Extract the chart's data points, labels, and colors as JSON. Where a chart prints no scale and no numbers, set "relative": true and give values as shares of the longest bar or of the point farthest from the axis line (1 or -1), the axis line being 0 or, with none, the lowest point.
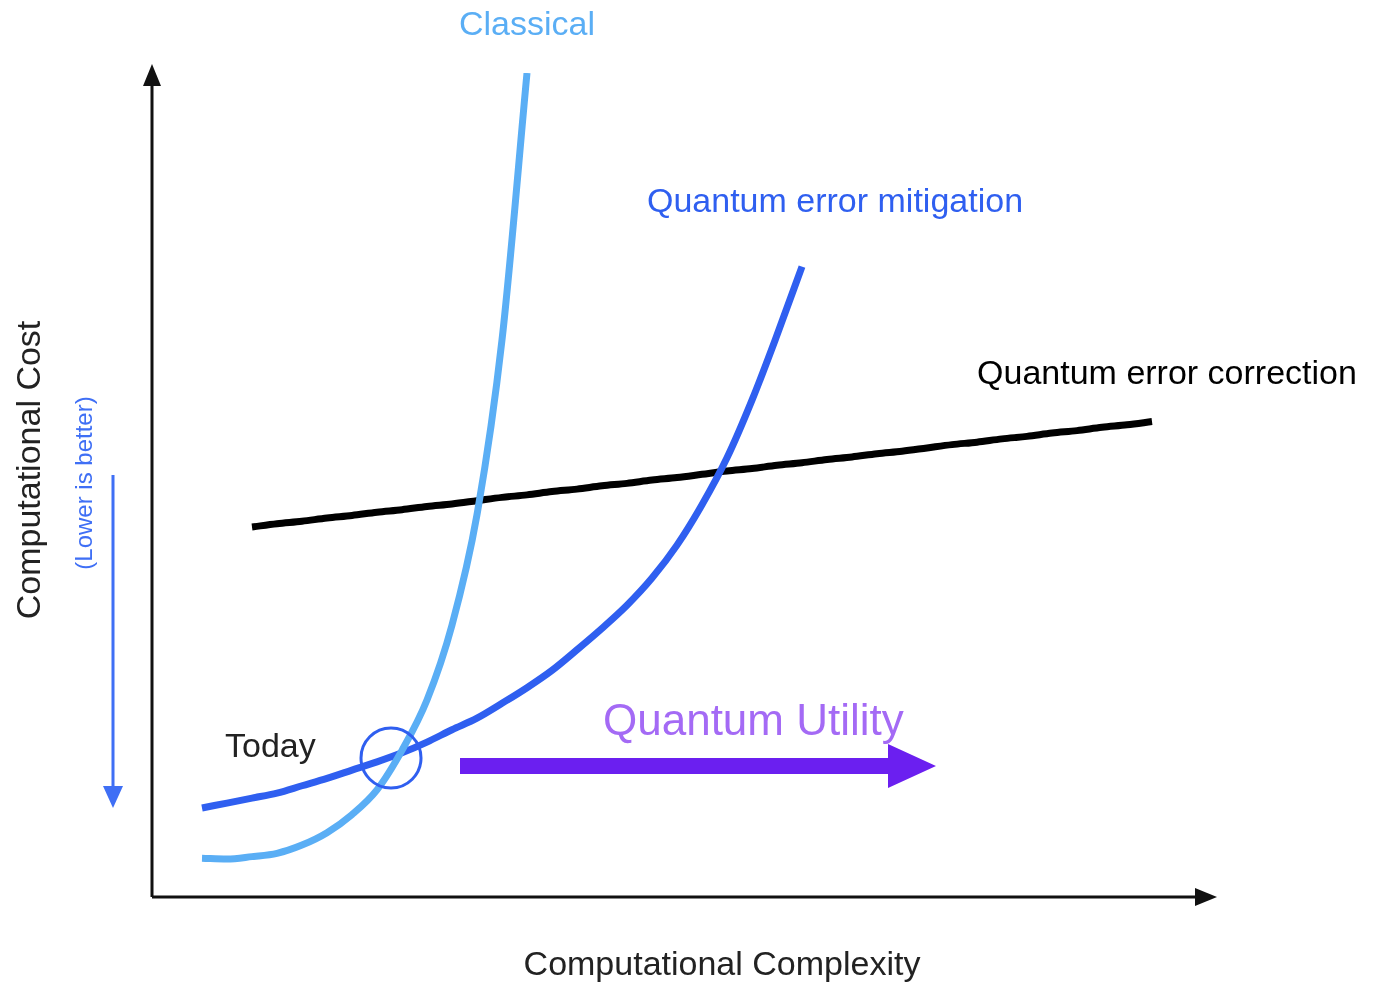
{
  "chart_data": {
    "type": "line",
    "relative": true,
    "xlabel": "Computational Complexity",
    "ylabel": "Computational Cost",
    "categories": [
      null,
      null,
      null,
      null,
      null,
      null,
      null,
      null,
      null,
      null,
      null,
      null,
      null,
      null,
      null,
      null,
      null,
      null,
      null,
      null,
      null,
      null,
      null,
      null,
      null,
      null,
      null,
      null,
      null,
      null,
      null,
      null,
      null,
      null,
      null,
      null,
      null,
      null,
      null,
      null,
      null,
      null,
      null
    ],
    "series": [
      {
        "name": "Classical",
        "color": "#5aaef5",
        "values": [
          null,
          null,
          0.047,
          0.046,
          0.049,
          0.053,
          0.063,
          0.078,
          0.1,
          0.13,
          0.178,
          0.239,
          0.33,
          0.464,
          0.676,
          1.0,
          null,
          null,
          null,
          null,
          null,
          null,
          null,
          null,
          null,
          null,
          null,
          null,
          null,
          null,
          null,
          null,
          null,
          null,
          null,
          null,
          null,
          null,
          null,
          null,
          null,
          null,
          null
        ]
      },
      {
        "name": "Quantum error mitigation",
        "color": "#2f5ff0",
        "values": [
          null,
          null,
          0.108,
          0.114,
          0.12,
          0.126,
          0.135,
          0.144,
          0.154,
          0.164,
          0.175,
          0.188,
          0.203,
          0.217,
          0.235,
          0.254,
          0.275,
          0.3,
          0.326,
          0.354,
          0.387,
          0.427,
          0.476,
          0.533,
          0.603,
          0.682,
          0.765,
          null,
          null,
          null,
          null,
          null,
          null,
          null,
          null,
          null,
          null,
          null,
          null,
          null,
          null,
          null,
          null
        ]
      },
      {
        "name": "Quantum error correction",
        "color": "#000000",
        "values": [
          null,
          null,
          null,
          null,
          0.449,
          0.453,
          0.456,
          0.46,
          0.463,
          0.467,
          0.47,
          0.474,
          0.477,
          0.481,
          0.485,
          0.488,
          0.492,
          0.495,
          0.499,
          0.502,
          0.506,
          0.509,
          0.513,
          0.517,
          0.52,
          0.524,
          0.527,
          0.531,
          0.534,
          0.538,
          0.541,
          0.545,
          0.549,
          0.552,
          0.556,
          0.559,
          0.563,
          0.566,
          0.57,
          0.573,
          0.577,
          null,
          null
        ]
      }
    ],
    "annotations": [
      "Today",
      "Quantum Utility",
      "(Lower is better)"
    ],
    "legend": false,
    "marker": "none",
    "line_style": "solid"
  }
}
